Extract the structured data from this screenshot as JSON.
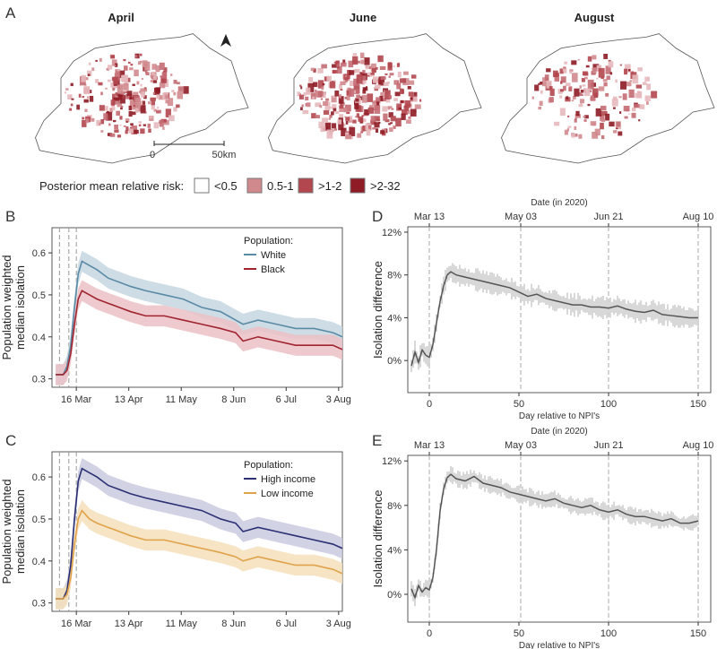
{
  "panels": {
    "a": "A",
    "b": "B",
    "c": "C",
    "d": "D",
    "e": "E"
  },
  "maps": {
    "titles": [
      "April",
      "June",
      "August"
    ],
    "scale_bar": {
      "start": "0",
      "end": "50km"
    },
    "legend": {
      "title": "Posterior mean relative risk:",
      "items": [
        {
          "label": "<0.5",
          "color": "#ffffff"
        },
        {
          "label": "0.5-1",
          "color": "#d08a8e"
        },
        {
          "label": ">1-2",
          "color": "#b3474f"
        },
        {
          "label": ">2-32",
          "color": "#8e1b25"
        }
      ]
    }
  },
  "chart_data": [
    {
      "id": "B",
      "type": "line",
      "ylabel": "Population weighted\nmedian isolation",
      "xlabel": "",
      "x_ticks": [
        {
          "label": "16 Mar",
          "day": 3
        },
        {
          "label": "13 Apr",
          "day": 31
        },
        {
          "label": "11 May",
          "day": 59
        },
        {
          "label": "8 Jun",
          "day": 87
        },
        {
          "label": "6 Jul",
          "day": 115
        },
        {
          "label": "3 Aug",
          "day": 143
        }
      ],
      "xlim": [
        -10,
        145
      ],
      "ylim": [
        0.28,
        0.66
      ],
      "y_ticks": [
        0.3,
        0.4,
        0.5,
        0.6
      ],
      "vlines": [
        -6,
        -1,
        3
      ],
      "legend": {
        "title": "Population:",
        "position": "top-right"
      },
      "series": [
        {
          "name": "White",
          "color": "#5b8aa6",
          "band": "#c6d7e1",
          "x": [
            -8,
            -4,
            -2,
            0,
            2,
            4,
            6,
            10,
            14,
            20,
            26,
            32,
            40,
            50,
            60,
            70,
            80,
            88,
            92,
            100,
            110,
            120,
            130,
            140,
            145
          ],
          "values": [
            0.31,
            0.31,
            0.33,
            0.38,
            0.47,
            0.55,
            0.58,
            0.57,
            0.56,
            0.54,
            0.53,
            0.52,
            0.51,
            0.5,
            0.49,
            0.47,
            0.46,
            0.44,
            0.43,
            0.44,
            0.43,
            0.42,
            0.42,
            0.41,
            0.4
          ]
        },
        {
          "name": "Black",
          "color": "#a02530",
          "band": "#ebc1c5",
          "x": [
            -8,
            -4,
            -2,
            0,
            2,
            4,
            6,
            10,
            14,
            20,
            26,
            32,
            40,
            50,
            60,
            70,
            80,
            88,
            92,
            100,
            110,
            120,
            130,
            140,
            145
          ],
          "values": [
            0.31,
            0.31,
            0.32,
            0.36,
            0.43,
            0.49,
            0.51,
            0.5,
            0.49,
            0.48,
            0.47,
            0.46,
            0.45,
            0.45,
            0.44,
            0.43,
            0.42,
            0.41,
            0.39,
            0.4,
            0.39,
            0.38,
            0.38,
            0.38,
            0.37
          ]
        }
      ]
    },
    {
      "id": "C",
      "type": "line",
      "ylabel": "Population weighted\nmedian isolation",
      "xlabel": "",
      "x_ticks": [
        {
          "label": "16 Mar",
          "day": 3
        },
        {
          "label": "13 Apr",
          "day": 31
        },
        {
          "label": "11 May",
          "day": 59
        },
        {
          "label": "8 Jun",
          "day": 87
        },
        {
          "label": "6 Jul",
          "day": 115
        },
        {
          "label": "3 Aug",
          "day": 143
        }
      ],
      "xlim": [
        -10,
        145
      ],
      "ylim": [
        0.28,
        0.66
      ],
      "y_ticks": [
        0.3,
        0.4,
        0.5,
        0.6
      ],
      "vlines": [
        -6,
        -1,
        3
      ],
      "legend": {
        "title": "Population:",
        "position": "top-right"
      },
      "series": [
        {
          "name": "High income",
          "color": "#2b2f73",
          "band": "#c9cbe0",
          "x": [
            -8,
            -4,
            -2,
            0,
            2,
            4,
            6,
            10,
            14,
            20,
            26,
            32,
            40,
            50,
            60,
            70,
            80,
            88,
            92,
            100,
            110,
            120,
            130,
            140,
            145
          ],
          "values": [
            0.31,
            0.31,
            0.33,
            0.39,
            0.5,
            0.59,
            0.62,
            0.61,
            0.6,
            0.58,
            0.57,
            0.56,
            0.55,
            0.54,
            0.53,
            0.52,
            0.5,
            0.49,
            0.47,
            0.48,
            0.47,
            0.46,
            0.45,
            0.44,
            0.43
          ]
        },
        {
          "name": "Low income",
          "color": "#e0a24a",
          "band": "#f5dfba",
          "x": [
            -8,
            -4,
            -2,
            0,
            2,
            4,
            6,
            10,
            14,
            20,
            26,
            32,
            40,
            50,
            60,
            70,
            80,
            88,
            92,
            100,
            110,
            120,
            130,
            140,
            145
          ],
          "values": [
            0.31,
            0.31,
            0.32,
            0.36,
            0.44,
            0.5,
            0.52,
            0.5,
            0.49,
            0.48,
            0.47,
            0.46,
            0.45,
            0.45,
            0.44,
            0.43,
            0.42,
            0.41,
            0.4,
            0.41,
            0.4,
            0.39,
            0.39,
            0.38,
            0.37
          ]
        }
      ]
    },
    {
      "id": "D",
      "type": "line",
      "title": "Date (in 2020)",
      "ylabel": "Isolation difference",
      "xlabel": "Day relative to NPI's",
      "xlim": [
        -12,
        157
      ],
      "ylim": [
        -3,
        12.5
      ],
      "x_ticks": [
        0,
        50,
        100,
        150
      ],
      "y_ticks": [
        0,
        4,
        8,
        12
      ],
      "y_tick_labels": [
        "0%",
        "4%",
        "8%",
        "12%"
      ],
      "top_ticks": [
        {
          "label": "Mar 13",
          "day": 0
        },
        {
          "label": "May 03",
          "day": 51
        },
        {
          "label": "Jun 21",
          "day": 100
        },
        {
          "label": "Aug 10",
          "day": 150
        }
      ],
      "vlines": [
        0,
        51,
        100,
        150
      ],
      "series": [
        {
          "color": "#555555",
          "x": [
            -10,
            -8,
            -6,
            -4,
            -2,
            0,
            2,
            4,
            6,
            8,
            10,
            12,
            15,
            20,
            25,
            30,
            35,
            40,
            45,
            50,
            55,
            60,
            65,
            70,
            75,
            80,
            85,
            90,
            95,
            100,
            105,
            110,
            115,
            120,
            125,
            130,
            135,
            140,
            145,
            150
          ],
          "values": [
            -0.5,
            0.8,
            -0.2,
            1.0,
            0.5,
            0.3,
            1.5,
            3.5,
            5.5,
            7.0,
            8.0,
            8.3,
            8.0,
            7.8,
            7.6,
            7.4,
            7.2,
            7.0,
            6.8,
            6.4,
            6.0,
            6.2,
            5.8,
            5.6,
            5.4,
            5.2,
            5.2,
            5.0,
            5.0,
            4.9,
            5.1,
            4.8,
            4.6,
            4.5,
            4.7,
            4.3,
            4.2,
            4.1,
            4.0,
            4.0
          ],
          "err": 0.8
        }
      ]
    },
    {
      "id": "E",
      "type": "line",
      "title": "Date (in 2020)",
      "ylabel": "Isolation difference",
      "xlabel": "Day relative to NPI's",
      "xlim": [
        -12,
        157
      ],
      "ylim": [
        -2.5,
        12.5
      ],
      "x_ticks": [
        0,
        50,
        100,
        150
      ],
      "y_ticks": [
        0,
        4,
        8,
        12
      ],
      "y_tick_labels": [
        "0%",
        "4%",
        "8%",
        "12%"
      ],
      "top_ticks": [
        {
          "label": "Mar 13",
          "day": 0
        },
        {
          "label": "May 03",
          "day": 51
        },
        {
          "label": "Jun 21",
          "day": 100
        },
        {
          "label": "Aug 10",
          "day": 150
        }
      ],
      "vlines": [
        0,
        51,
        100,
        150
      ],
      "series": [
        {
          "color": "#555555",
          "x": [
            -10,
            -8,
            -6,
            -4,
            -2,
            0,
            2,
            4,
            6,
            8,
            10,
            12,
            15,
            20,
            25,
            30,
            35,
            40,
            45,
            50,
            55,
            60,
            65,
            70,
            75,
            80,
            85,
            90,
            95,
            100,
            105,
            110,
            115,
            120,
            125,
            130,
            135,
            140,
            145,
            150
          ],
          "values": [
            0.5,
            -0.3,
            0.8,
            0.2,
            0.6,
            0.4,
            1.5,
            4.0,
            7.5,
            9.5,
            10.5,
            10.8,
            10.4,
            10.2,
            10.6,
            10.0,
            9.8,
            9.6,
            9.2,
            9.0,
            8.8,
            8.6,
            8.4,
            8.6,
            8.2,
            8.0,
            7.8,
            8.0,
            7.6,
            7.4,
            7.6,
            7.2,
            7.0,
            7.0,
            6.8,
            6.6,
            6.8,
            6.4,
            6.4,
            6.6
          ],
          "err": 0.6
        }
      ]
    }
  ]
}
